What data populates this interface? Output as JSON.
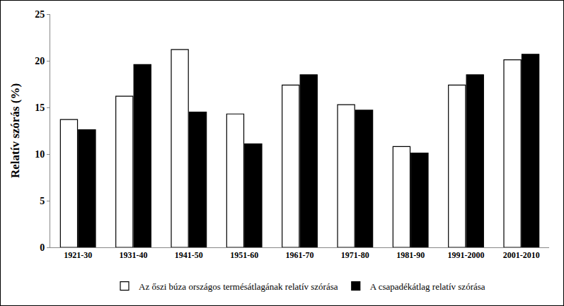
{
  "chart_data": {
    "type": "bar",
    "categories": [
      "1921-30",
      "1931-40",
      "1941-50",
      "1951-60",
      "1961-70",
      "1971-80",
      "1981-90",
      "1991-2000",
      "2001-2010"
    ],
    "series": [
      {
        "name": "Az őszi búza országos termésátlagának relatív szórása",
        "color": "#ffffff",
        "values": [
          13.7,
          16.2,
          21.2,
          14.3,
          17.4,
          15.3,
          10.8,
          17.4,
          20.1
        ]
      },
      {
        "name": "A csapadékátlag relatív szórása",
        "color": "#000000",
        "values": [
          12.6,
          19.6,
          14.5,
          11.1,
          18.5,
          14.7,
          10.1,
          18.5,
          20.7
        ]
      }
    ],
    "y_label": "Relatív szórás (%)",
    "ylim": [
      0,
      25
    ],
    "yticks": [
      0,
      5,
      10,
      15,
      20,
      25
    ],
    "grid": false,
    "legend": "bottom"
  }
}
